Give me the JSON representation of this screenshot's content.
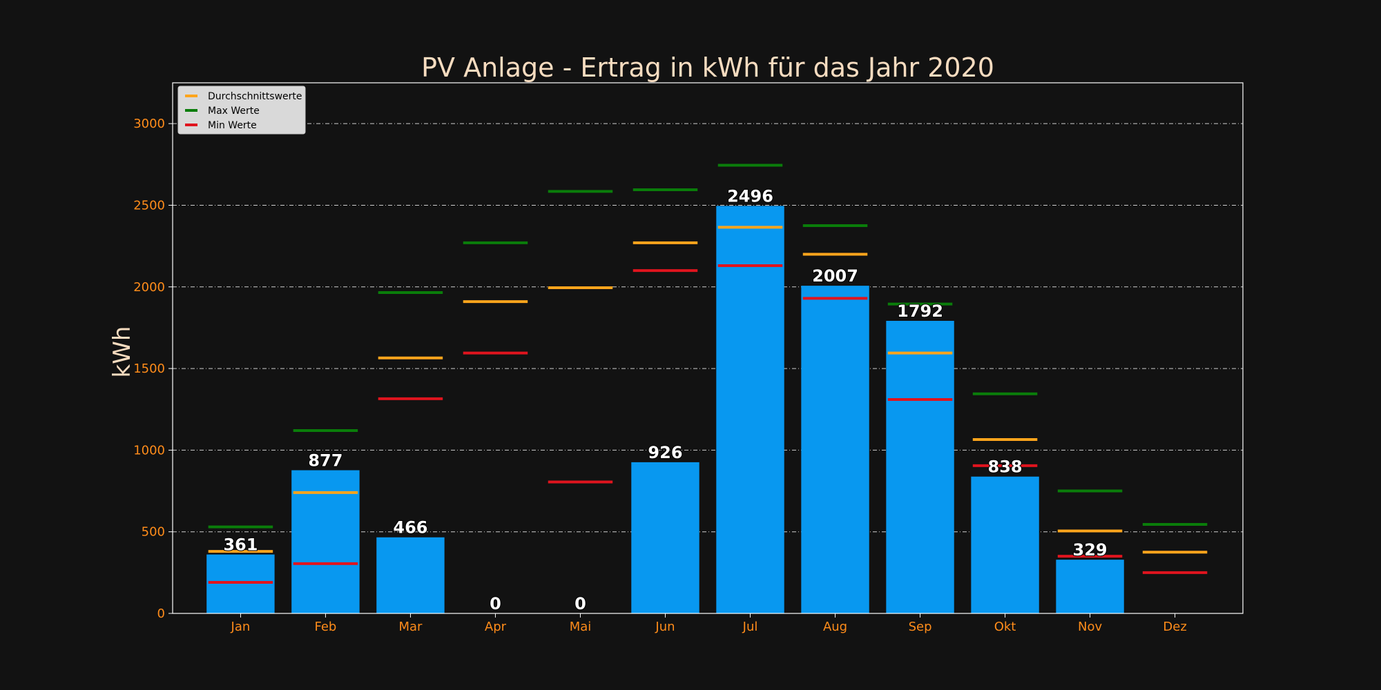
{
  "chart_data": {
    "type": "bar",
    "title": "PV Anlage - Ertrag in kWh für das Jahr 2020",
    "xlabel": "",
    "ylabel": "kWh",
    "categories": [
      "Jan",
      "Feb",
      "Mar",
      "Apr",
      "Mai",
      "Jun",
      "Jul",
      "Aug",
      "Sep",
      "Okt",
      "Nov",
      "Dez"
    ],
    "values": [
      361,
      877,
      466,
      0,
      0,
      926,
      2496,
      2007,
      1792,
      838,
      329,
      null
    ],
    "value_labels": [
      "361",
      "877",
      "466",
      "0",
      "0",
      "926",
      "2496",
      "2007",
      "1792",
      "838",
      "329",
      ""
    ],
    "series": [
      {
        "name": "Durchschnittswerte",
        "color": "#ffa51c",
        "values": [
          380,
          740,
          1565,
          1910,
          1995,
          2270,
          2365,
          2200,
          1595,
          1065,
          505,
          375
        ]
      },
      {
        "name": "Max Werte",
        "color": "#0a7d0a",
        "values": [
          530,
          1120,
          1965,
          2270,
          2585,
          2595,
          2745,
          2375,
          1895,
          1345,
          750,
          545
        ]
      },
      {
        "name": "Min Werte",
        "color": "#e0141e",
        "values": [
          190,
          305,
          1315,
          1595,
          805,
          2100,
          2130,
          1930,
          1310,
          905,
          350,
          250
        ]
      }
    ],
    "bar_color": "#0898f0",
    "ylim": [
      0,
      3250
    ],
    "yticks": [
      0,
      500,
      1000,
      1500,
      2000,
      2500,
      3000
    ],
    "grid": true,
    "legend_position": "top-left"
  }
}
